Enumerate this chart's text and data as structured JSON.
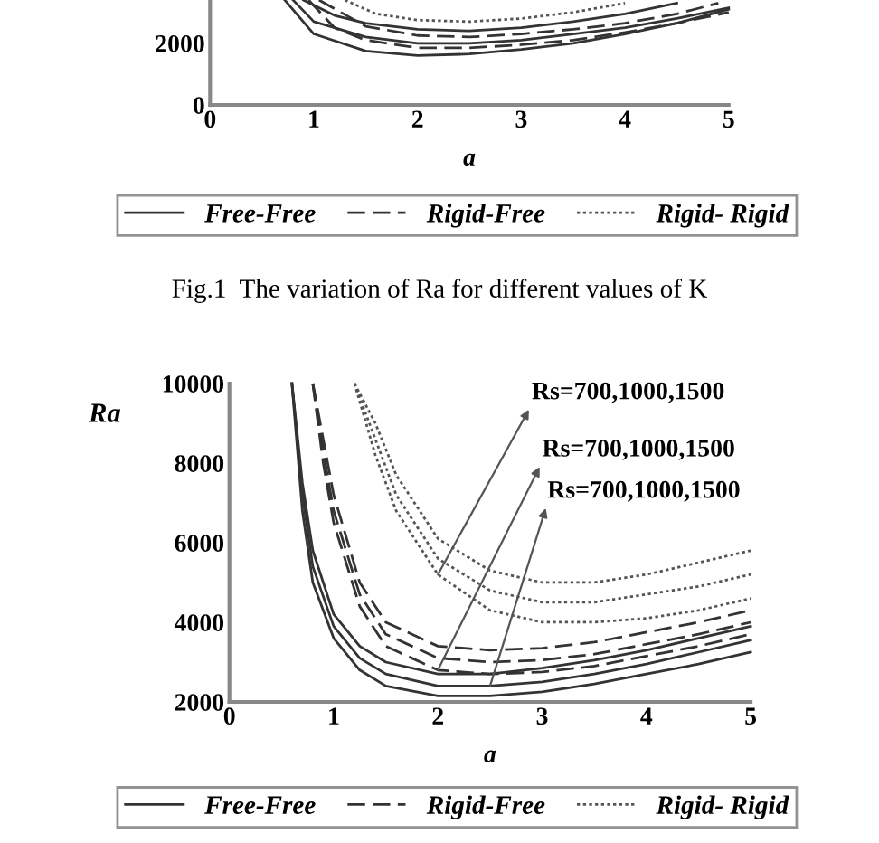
{
  "chart_data": [
    {
      "type": "line",
      "xlabel": "a",
      "xlim": [
        0,
        5
      ],
      "xticks": [
        0,
        1,
        2,
        3,
        4,
        5
      ],
      "ylim": [
        0,
        3400
      ],
      "yticks": [
        0,
        2000
      ],
      "grid": false,
      "legend": "bottom",
      "annotations": [
        "Fig.1  The variation of Ra for different values of K"
      ],
      "series": [
        {
          "name": "Free-Free",
          "color": "#333333",
          "line_style": "solid",
          "x": [
            0.72,
            1,
            1.5,
            2,
            2.5,
            3,
            3.5,
            4,
            4.5,
            5
          ],
          "values": [
            3400,
            2300,
            1750,
            1600,
            1650,
            1800,
            2000,
            2300,
            2650,
            3100
          ]
        },
        {
          "name": "Rigid-Free",
          "color": "#333333",
          "line_style": "dashed",
          "x": [
            0.95,
            1.2,
            1.5,
            2,
            2.5,
            3,
            3.5,
            4,
            4.5,
            5
          ],
          "values": [
            3400,
            2500,
            2100,
            1850,
            1850,
            1950,
            2100,
            2350,
            2650,
            3000
          ]
        },
        {
          "color": "#333333",
          "line_style": "solid",
          "x": [
            0.8,
            1,
            1.5,
            2,
            2.5,
            3,
            3.5,
            4,
            4.5,
            5
          ],
          "values": [
            3400,
            2700,
            2200,
            2000,
            2000,
            2100,
            2300,
            2500,
            2800,
            3150
          ]
        },
        {
          "color": "#333333",
          "line_style": "dashed",
          "x": [
            1.05,
            1.5,
            2,
            2.5,
            3,
            3.5,
            4,
            4.5,
            4.9
          ],
          "values": [
            3400,
            2550,
            2250,
            2200,
            2300,
            2450,
            2650,
            2950,
            3300
          ]
        },
        {
          "color": "#333333",
          "line_style": "solid",
          "x": [
            0.9,
            1.2,
            1.5,
            2,
            2.5,
            3,
            3.5,
            4,
            4.5
          ],
          "values": [
            3400,
            2900,
            2650,
            2450,
            2400,
            2500,
            2700,
            2950,
            3300
          ]
        },
        {
          "name": "Rigid- Rigid",
          "color": "#555555",
          "line_style": "dotted",
          "x": [
            1.3,
            1.6,
            2,
            2.5,
            3,
            3.5,
            4
          ],
          "values": [
            3400,
            2950,
            2750,
            2700,
            2800,
            3000,
            3300
          ]
        }
      ]
    },
    {
      "type": "line",
      "xlabel": "a",
      "ylabel": "Ra",
      "xlim": [
        0,
        5
      ],
      "xticks": [
        0,
        1,
        2,
        3,
        4,
        5
      ],
      "ylim": [
        2000,
        10000
      ],
      "yticks": [
        2000,
        4000,
        6000,
        8000,
        10000
      ],
      "grid": false,
      "legend": "bottom",
      "annotations": [
        "Rs=700,1000,1500",
        "Rs=700,1000,1500",
        "Rs=700,1000,1500"
      ],
      "series": [
        {
          "name": "Free-Free",
          "color": "#333333",
          "line_style": "solid",
          "x": [
            0.6,
            0.7,
            0.8,
            1,
            1.25,
            1.5,
            2,
            2.5,
            3,
            3.5,
            4,
            4.5,
            5
          ],
          "values": [
            10000,
            6800,
            5000,
            3600,
            2800,
            2400,
            2150,
            2150,
            2250,
            2450,
            2700,
            2950,
            3250
          ]
        },
        {
          "color": "#333333",
          "line_style": "solid",
          "x": [
            0.6,
            0.7,
            0.8,
            1,
            1.25,
            1.5,
            2,
            2.5,
            3,
            3.5,
            4,
            4.5,
            5
          ],
          "values": [
            10000,
            7200,
            5400,
            3900,
            3100,
            2700,
            2400,
            2400,
            2500,
            2700,
            2950,
            3250,
            3550
          ]
        },
        {
          "color": "#333333",
          "line_style": "solid",
          "x": [
            0.6,
            0.7,
            0.8,
            1,
            1.25,
            1.5,
            2,
            2.5,
            3,
            3.5,
            4,
            4.5,
            5
          ],
          "values": [
            10000,
            7500,
            5800,
            4200,
            3400,
            3000,
            2700,
            2700,
            2850,
            3050,
            3300,
            3600,
            3900
          ]
        },
        {
          "name": "Rigid-Free",
          "color": "#333333",
          "line_style": "dashed",
          "x": [
            0.8,
            0.9,
            1,
            1.25,
            1.5,
            2,
            2.5,
            3,
            3.5,
            4,
            4.5,
            5
          ],
          "values": [
            10000,
            8000,
            6500,
            4400,
            3400,
            2800,
            2700,
            2750,
            2900,
            3150,
            3400,
            3700
          ]
        },
        {
          "color": "#333333",
          "line_style": "dashed",
          "x": [
            0.8,
            0.9,
            1,
            1.25,
            1.5,
            2,
            2.5,
            3,
            3.5,
            4,
            4.5,
            5
          ],
          "values": [
            10000,
            8300,
            6800,
            4700,
            3700,
            3100,
            3000,
            3050,
            3200,
            3450,
            3700,
            4000
          ]
        },
        {
          "color": "#333333",
          "line_style": "dashed",
          "x": [
            0.8,
            0.9,
            1,
            1.25,
            1.5,
            2,
            2.5,
            3,
            3.5,
            4,
            4.5,
            5
          ],
          "values": [
            10000,
            8600,
            7200,
            5000,
            4000,
            3400,
            3300,
            3350,
            3500,
            3750,
            4000,
            4300
          ]
        },
        {
          "name": "Rigid- Rigid",
          "color": "#555555",
          "line_style": "dotted",
          "x": [
            1.2,
            1.4,
            1.6,
            2,
            2.5,
            3,
            3.5,
            4,
            4.5,
            5
          ],
          "values": [
            10000,
            8200,
            6800,
            5200,
            4300,
            4000,
            4000,
            4100,
            4300,
            4600
          ]
        },
        {
          "color": "#555555",
          "line_style": "dotted",
          "x": [
            1.2,
            1.4,
            1.6,
            2,
            2.5,
            3,
            3.5,
            4,
            4.5,
            5
          ],
          "values": [
            10000,
            8600,
            7200,
            5600,
            4800,
            4500,
            4500,
            4700,
            4900,
            5200
          ]
        },
        {
          "color": "#555555",
          "line_style": "dotted",
          "x": [
            1.2,
            1.4,
            1.6,
            2,
            2.5,
            3,
            3.5,
            4,
            4.5,
            5
          ],
          "values": [
            10000,
            9000,
            7700,
            6100,
            5300,
            5000,
            5000,
            5200,
            5500,
            5800
          ]
        }
      ]
    }
  ]
}
